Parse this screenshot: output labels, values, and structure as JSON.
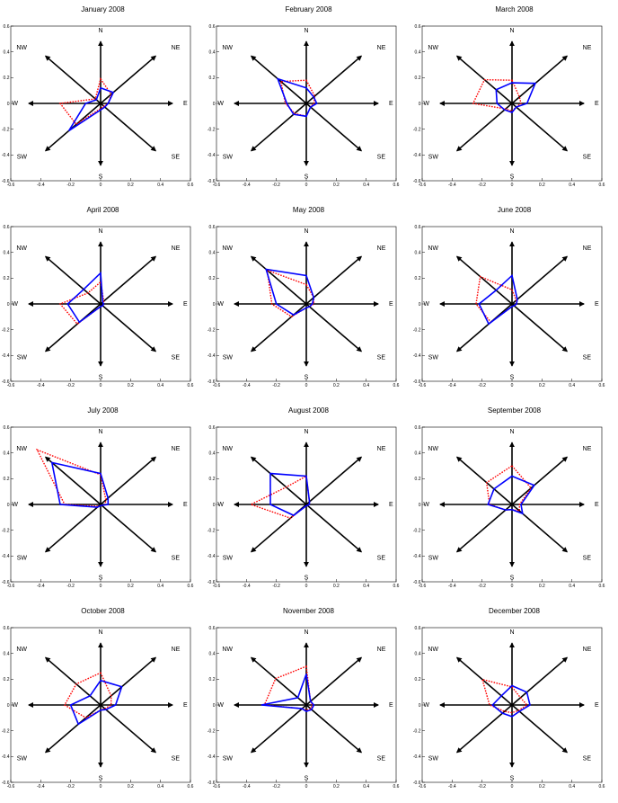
{
  "chart_data": {
    "type": "radar",
    "axis_range": [
      -0.6,
      0.6
    ],
    "tick_labels": [
      "-0.6",
      "-0.4",
      "-0.2",
      "0",
      "0.2",
      "0.4",
      "0.6"
    ],
    "directions": [
      "N",
      "NE",
      "E",
      "SE",
      "S",
      "SW",
      "W",
      "NW"
    ],
    "colors": {
      "series_a": "#0000ff",
      "series_b": "#ff0000",
      "arrows": "#000000"
    },
    "panels": [
      {
        "title": "January 2008",
        "series": [
          {
            "values": [
              0.12,
              0.12,
              0.05,
              0.04,
              0.05,
              0.3,
              0.1,
              0.04
            ]
          },
          {
            "values": [
              0.19,
              0.1,
              0.05,
              0.03,
              0.04,
              0.23,
              0.27,
              0.05
            ]
          }
        ]
      },
      {
        "title": "February 2008",
        "series": [
          {
            "values": [
              0.12,
              0.07,
              0.07,
              0.04,
              0.1,
              0.12,
              0.13,
              0.27
            ]
          },
          {
            "values": [
              0.18,
              0.08,
              0.05,
              0.04,
              0.1,
              0.11,
              0.14,
              0.24
            ]
          }
        ]
      },
      {
        "title": "March 2008",
        "series": [
          {
            "values": [
              0.16,
              0.22,
              0.1,
              0.04,
              0.07,
              0.07,
              0.1,
              0.15
            ]
          },
          {
            "values": [
              0.18,
              0.07,
              0.06,
              0.04,
              0.06,
              0.06,
              0.26,
              0.26
            ]
          }
        ]
      },
      {
        "title": "April 2008",
        "series": [
          {
            "values": [
              0.24,
              0.02,
              0.02,
              0.02,
              0.02,
              0.2,
              0.22,
              0.16
            ]
          },
          {
            "values": [
              0.17,
              0.03,
              0.02,
              0.02,
              0.02,
              0.22,
              0.27,
              0.12
            ]
          }
        ]
      },
      {
        "title": "May 2008",
        "series": [
          {
            "values": [
              0.22,
              0.07,
              0.04,
              0.03,
              0.03,
              0.12,
              0.2,
              0.38
            ]
          },
          {
            "values": [
              0.15,
              0.07,
              0.05,
              0.03,
              0.03,
              0.14,
              0.23,
              0.37
            ]
          }
        ]
      },
      {
        "title": "June 2008",
        "series": [
          {
            "values": [
              0.22,
              0.05,
              0.03,
              0.02,
              0.02,
              0.22,
              0.22,
              0.15
            ]
          },
          {
            "values": [
              0.11,
              0.04,
              0.03,
              0.02,
              0.02,
              0.2,
              0.24,
              0.3
            ]
          }
        ]
      },
      {
        "title": "July 2008",
        "series": [
          {
            "values": [
              0.24,
              0.07,
              0.05,
              0.01,
              0.01,
              0.03,
              0.27,
              0.46
            ]
          },
          {
            "values": [
              0.23,
              0.05,
              0.03,
              0.01,
              0.01,
              0.02,
              0.24,
              0.6
            ]
          }
        ]
      },
      {
        "title": "August 2008",
        "series": [
          {
            "values": [
              0.22,
              0.03,
              0.02,
              0.01,
              0.01,
              0.12,
              0.24,
              0.34
            ]
          },
          {
            "values": [
              0.22,
              0.03,
              0.02,
              0.01,
              0.01,
              0.15,
              0.37,
              0.19
            ]
          }
        ]
      },
      {
        "title": "September 2008",
        "series": [
          {
            "values": [
              0.22,
              0.21,
              0.06,
              0.1,
              0.04,
              0.06,
              0.16,
              0.17
            ]
          },
          {
            "values": [
              0.3,
              0.18,
              0.05,
              0.07,
              0.04,
              0.06,
              0.15,
              0.24
            ]
          }
        ]
      },
      {
        "title": "October 2008",
        "series": [
          {
            "values": [
              0.19,
              0.2,
              0.1,
              0.05,
              0.04,
              0.21,
              0.2,
              0.1
            ]
          },
          {
            "values": [
              0.25,
              0.1,
              0.07,
              0.04,
              0.04,
              0.14,
              0.24,
              0.23
            ]
          }
        ]
      },
      {
        "title": "November 2008",
        "series": [
          {
            "values": [
              0.24,
              0.04,
              0.05,
              0.05,
              0.05,
              0.04,
              0.3,
              0.08
            ]
          },
          {
            "values": [
              0.3,
              0.04,
              0.04,
              0.04,
              0.04,
              0.04,
              0.28,
              0.29
            ]
          }
        ]
      },
      {
        "title": "December 2008",
        "series": [
          {
            "values": [
              0.15,
              0.14,
              0.12,
              0.07,
              0.09,
              0.09,
              0.13,
              0.1
            ]
          },
          {
            "values": [
              0.14,
              0.08,
              0.1,
              0.06,
              0.06,
              0.07,
              0.15,
              0.28
            ]
          }
        ]
      }
    ]
  }
}
